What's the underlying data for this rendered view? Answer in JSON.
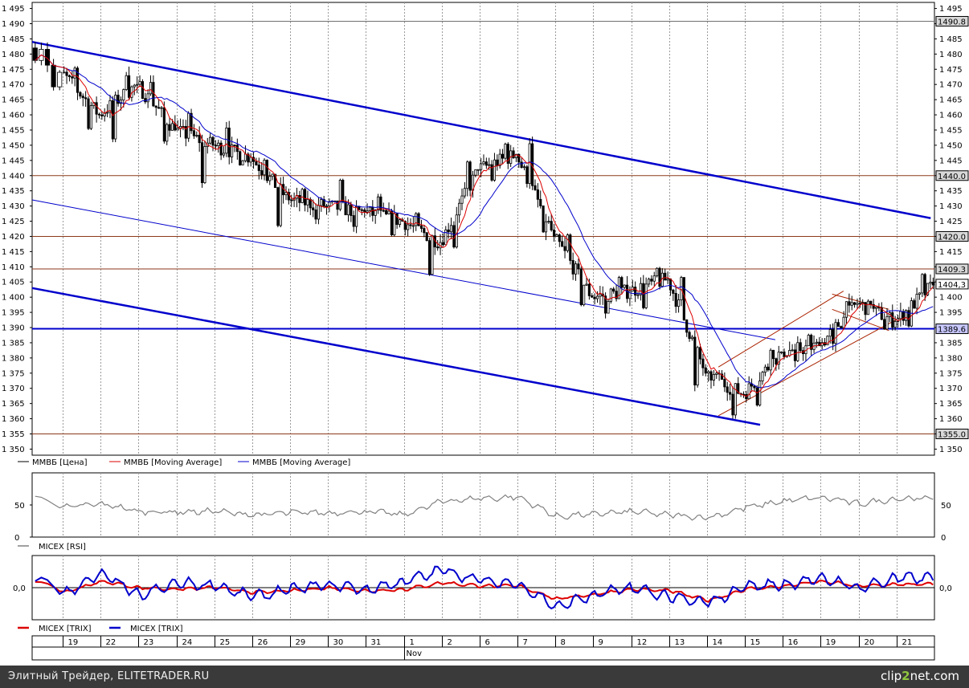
{
  "chart_data": [
    {
      "type": "candlestick",
      "panel": "price",
      "y_ticks": [
        "1 495",
        "1 490",
        "1 485",
        "1 480",
        "1 475",
        "1 470",
        "1 465",
        "1 460",
        "1 455",
        "1 450",
        "1 445",
        "1 440",
        "1 435",
        "1 430",
        "1 425",
        "1 420",
        "1 415",
        "1 410",
        "1 405",
        "1 400",
        "1 395",
        "1 390",
        "1 385",
        "1 380",
        "1 375",
        "1 370",
        "1 365",
        "1 360",
        "1 355",
        "1 350"
      ],
      "ylim": [
        1348,
        1497
      ],
      "horizontal_levels": [
        {
          "label": "1490.8",
          "value": 1490.8,
          "color": "#707070"
        },
        {
          "label": "1440.0",
          "value": 1440.0,
          "color": "#8b3a1a"
        },
        {
          "label": "1420.0",
          "value": 1420.0,
          "color": "#8b3a1a"
        },
        {
          "label": "1409.3",
          "value": 1409.3,
          "color": "#8b3a1a"
        },
        {
          "label": "1404,3",
          "value": 1404.3,
          "color": "#000000"
        },
        {
          "label": "1389.6",
          "value": 1389.6,
          "color": "#0000cc"
        },
        {
          "label": "1355.0",
          "value": 1355.0,
          "color": "#8b3a1a"
        }
      ],
      "legend": [
        "ММВБ [Цена]",
        "ММВБ [Moving Average]",
        "ММВБ [Moving Average]"
      ],
      "series_colors": [
        "#000000",
        "#dd0000",
        "#0000cc"
      ],
      "days": [
        "",
        "19",
        "22",
        "23",
        "24",
        "25",
        "26",
        "29",
        "30",
        "31",
        "1",
        "2",
        "6",
        "7",
        "8",
        "9",
        "12",
        "13",
        "14",
        "15",
        "16",
        "19",
        "20",
        "21"
      ],
      "month_label": "Nov",
      "daily_ohlc": [
        {
          "day": "",
          "o": 1482,
          "h": 1484,
          "l": 1468,
          "c": 1474
        },
        {
          "day": "19",
          "o": 1474,
          "h": 1476,
          "l": 1455,
          "c": 1460
        },
        {
          "day": "22",
          "o": 1460,
          "h": 1476,
          "l": 1451,
          "c": 1470
        },
        {
          "day": "23",
          "o": 1470,
          "h": 1473,
          "l": 1450,
          "c": 1455
        },
        {
          "day": "24",
          "o": 1455,
          "h": 1462,
          "l": 1436,
          "c": 1450
        },
        {
          "day": "25",
          "o": 1450,
          "h": 1458,
          "l": 1443,
          "c": 1446
        },
        {
          "day": "26",
          "o": 1446,
          "h": 1448,
          "l": 1423,
          "c": 1432
        },
        {
          "day": "29",
          "o": 1432,
          "h": 1436,
          "l": 1424,
          "c": 1430
        },
        {
          "day": "30",
          "o": 1430,
          "h": 1439,
          "l": 1420,
          "c": 1428
        },
        {
          "day": "31",
          "o": 1428,
          "h": 1434,
          "l": 1420,
          "c": 1425
        },
        {
          "day": "1",
          "o": 1425,
          "h": 1428,
          "l": 1407,
          "c": 1418
        },
        {
          "day": "2",
          "o": 1418,
          "h": 1445,
          "l": 1416,
          "c": 1442
        },
        {
          "day": "6",
          "o": 1442,
          "h": 1451,
          "l": 1438,
          "c": 1447
        },
        {
          "day": "7",
          "o": 1447,
          "h": 1453,
          "l": 1418,
          "c": 1420
        },
        {
          "day": "8",
          "o": 1420,
          "h": 1421,
          "l": 1397,
          "c": 1400
        },
        {
          "day": "9",
          "o": 1400,
          "h": 1407,
          "l": 1393,
          "c": 1402
        },
        {
          "day": "12",
          "o": 1402,
          "h": 1410,
          "l": 1396,
          "c": 1406
        },
        {
          "day": "13",
          "o": 1406,
          "h": 1407,
          "l": 1369,
          "c": 1375
        },
        {
          "day": "14",
          "o": 1375,
          "h": 1376,
          "l": 1360,
          "c": 1368
        },
        {
          "day": "15",
          "o": 1368,
          "h": 1386,
          "l": 1364,
          "c": 1382
        },
        {
          "day": "16",
          "o": 1382,
          "h": 1388,
          "l": 1376,
          "c": 1384
        },
        {
          "day": "19",
          "o": 1384,
          "h": 1402,
          "l": 1382,
          "c": 1398
        },
        {
          "day": "20",
          "o": 1398,
          "h": 1400,
          "l": 1389,
          "c": 1392
        },
        {
          "day": "21",
          "o": 1392,
          "h": 1408,
          "l": 1390,
          "c": 1404
        }
      ],
      "trend_lines": [
        {
          "name": "channel-upper",
          "color": "#0000cc",
          "from": {
            "day_index": 0,
            "value": 1484
          },
          "to": {
            "day_index": 23.9,
            "value": 1426
          }
        },
        {
          "name": "channel-middle",
          "color": "#0000cc",
          "from": {
            "day_index": 0,
            "value": 1432
          },
          "to": {
            "day_index": 19.8,
            "value": 1386
          }
        },
        {
          "name": "channel-lower",
          "color": "#0000cc",
          "from": {
            "day_index": 0,
            "value": 1403
          },
          "to": {
            "day_index": 19.4,
            "value": 1358
          }
        },
        {
          "name": "up-channel-upper",
          "color": "#aa2200",
          "from": {
            "day_index": 18.3,
            "value": 1377
          },
          "to": {
            "day_index": 21.6,
            "value": 1402
          }
        },
        {
          "name": "up-channel-lower",
          "color": "#aa2200",
          "from": {
            "day_index": 18.3,
            "value": 1361
          },
          "to": {
            "day_index": 23.2,
            "value": 1394
          }
        },
        {
          "name": "flag-upper",
          "color": "#aa2200",
          "from": {
            "day_index": 21.3,
            "value": 1401
          },
          "to": {
            "day_index": 22.8,
            "value": 1396
          }
        },
        {
          "name": "flag-lower",
          "color": "#aa2200",
          "from": {
            "day_index": 21.3,
            "value": 1396
          },
          "to": {
            "day_index": 22.8,
            "value": 1389
          }
        }
      ]
    },
    {
      "type": "line",
      "panel": "rsi",
      "y_ticks": [
        "50",
        "0"
      ],
      "ylim": [
        0,
        100
      ],
      "legend": [
        "MICEX [RSI]"
      ],
      "series_colors": [
        "#808080"
      ],
      "daily_values": [
        62,
        46,
        52,
        40,
        39,
        40,
        34,
        38,
        38,
        40,
        35,
        56,
        60,
        62,
        32,
        36,
        40,
        34,
        30,
        46,
        56,
        62,
        52,
        60
      ]
    },
    {
      "type": "line",
      "panel": "trix",
      "y_ticks": [
        "0,0"
      ],
      "ylim": [
        -1,
        1
      ],
      "legend": [
        "MICEX [TRIX]",
        "MICEX [TRIX]"
      ],
      "series_colors": [
        "#dd0000",
        "#0000cc"
      ],
      "daily_values_signal": [
        0.2,
        -0.15,
        0.2,
        0.0,
        -0.05,
        0.0,
        -0.15,
        -0.1,
        0.0,
        -0.1,
        -0.05,
        0.15,
        0.05,
        0.05,
        -0.35,
        -0.2,
        -0.05,
        -0.1,
        -0.4,
        -0.05,
        0.05,
        0.2,
        0.05,
        0.1
      ],
      "daily_values_trix": [
        0.25,
        -0.2,
        0.45,
        -0.25,
        0.15,
        0.05,
        -0.3,
        -0.05,
        0.1,
        -0.05,
        0.2,
        0.55,
        0.2,
        0.1,
        -0.6,
        -0.2,
        0.0,
        -0.3,
        -0.5,
        0.05,
        0.1,
        0.3,
        0.0,
        0.3
      ]
    }
  ],
  "footer": {
    "left_text": "Элитный Трейдер, ELITETRADER.RU",
    "logo_prefix": "clip",
    "logo_two": "2",
    "logo_suffix": "net.com"
  }
}
